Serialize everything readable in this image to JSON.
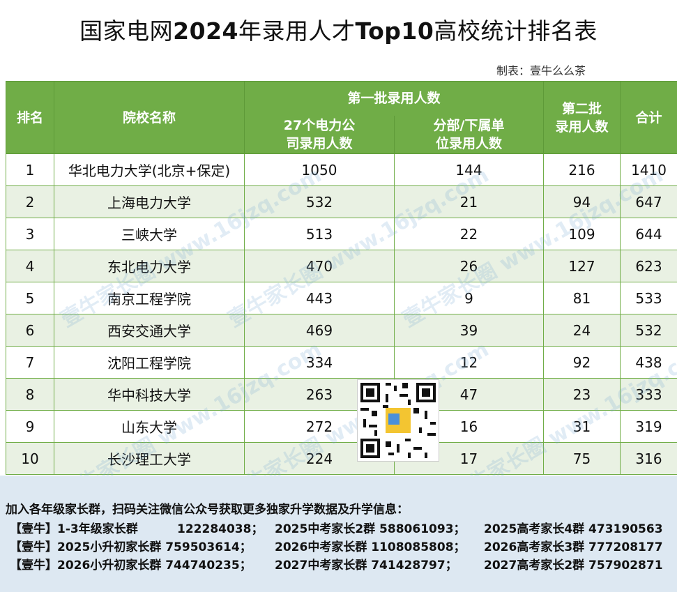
{
  "title_prefix": "国家电网",
  "title_bold": "2024",
  "title_mid": "年录用人才",
  "title_bold2": "Top10",
  "title_suffix": "高校统计排名表",
  "maker": "制表：壹牛么么茶",
  "headers": {
    "rank": "排名",
    "school": "院校名称",
    "first_batch": "第一批录用人数",
    "sub1_line1": "27个电力公",
    "sub1_line2": "司录用人数",
    "sub2_line1": "分部/下属单",
    "sub2_line2": "位录用人数",
    "second_line1": "第二批",
    "second_line2": "录用人数",
    "total": "合计"
  },
  "rows": [
    {
      "rank": "1",
      "school": "华北电力大学(北京+保定)",
      "a": "1050",
      "b": "144",
      "c": "216",
      "total": "1410"
    },
    {
      "rank": "2",
      "school": "上海电力大学",
      "a": "532",
      "b": "21",
      "c": "94",
      "total": "647"
    },
    {
      "rank": "3",
      "school": "三峡大学",
      "a": "513",
      "b": "22",
      "c": "109",
      "total": "644"
    },
    {
      "rank": "4",
      "school": "东北电力大学",
      "a": "470",
      "b": "26",
      "c": "127",
      "total": "623"
    },
    {
      "rank": "5",
      "school": "南京工程学院",
      "a": "443",
      "b": "9",
      "c": "81",
      "total": "533"
    },
    {
      "rank": "6",
      "school": "西安交通大学",
      "a": "469",
      "b": "39",
      "c": "24",
      "total": "532"
    },
    {
      "rank": "7",
      "school": "沈阳工程学院",
      "a": "334",
      "b": "12",
      "c": "92",
      "total": "438"
    },
    {
      "rank": "8",
      "school": "华中科技大学",
      "a": "263",
      "b": "47",
      "c": "23",
      "total": "333"
    },
    {
      "rank": "9",
      "school": "山东大学",
      "a": "272",
      "b": "16",
      "c": "31",
      "total": "319"
    },
    {
      "rank": "10",
      "school": "长沙理工大学",
      "a": "224",
      "b": "17",
      "c": "75",
      "total": "316"
    }
  ],
  "watermark": "壹牛家长圈 www.16jzq.com",
  "footer": {
    "intro": "加入各年级家长群，扫码关注微信公众号获取更多独家升学数据及升学信息：",
    "lines": [
      [
        "【壹牛】1-3年级家长群",
        "122284038；",
        "2025中考家长2群 588061093；",
        "2025高考家长4群 473190563"
      ],
      [
        "【壹牛】2025小升初家长群 759503614；",
        "",
        "2026中考家长群 1108085808；",
        "2026高考家长3群 777208177"
      ],
      [
        "【壹牛】2026小升初家长群 744740235；",
        "",
        "2027中考家长群 741428797；",
        "2027高考家长2群 757902871"
      ]
    ]
  },
  "colors": {
    "header_green": "#70ad47",
    "row_alt": "#e9f1e3",
    "footer_bg": "#dde8f2"
  }
}
